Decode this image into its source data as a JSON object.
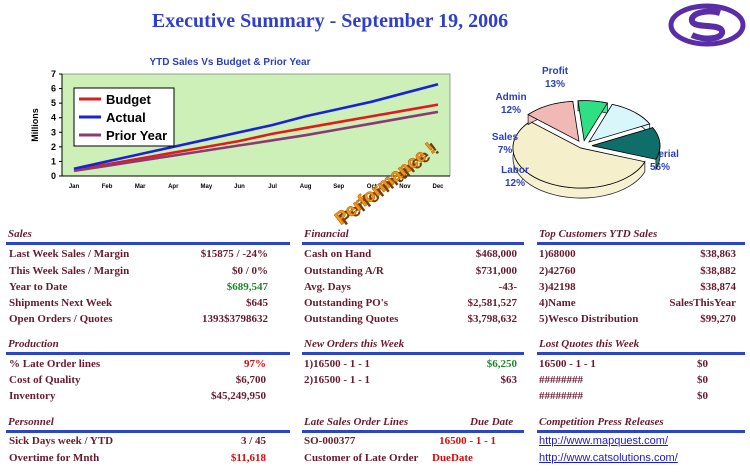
{
  "header": {
    "title": "Executive Summary - September 19, 2006"
  },
  "colors": {
    "title_blue": "#2f3fcc",
    "section_rule": "#2a45c8",
    "label_plum": "#6a1a2e",
    "value_green": "#1c8a2a",
    "value_red": "#d80d0d",
    "plot_bg": "#cdf0b8"
  },
  "chart_data": [
    {
      "type": "line",
      "title": "YTD Sales Vs Budget & Prior Year",
      "ylabel": "Millions",
      "xlabel": "",
      "ylim": [
        0,
        7
      ],
      "yticks": [
        0,
        1,
        2,
        3,
        4,
        5,
        6,
        7
      ],
      "categories": [
        "Jan",
        "Feb",
        "Mar",
        "Apr",
        "May",
        "Jun",
        "Jul",
        "Aug",
        "Sep",
        "Oct",
        "Nov",
        "Dec"
      ],
      "legend": "top-left",
      "grid": false,
      "series": [
        {
          "name": "Budget",
          "color": "#e31a1a",
          "values": [
            0.4,
            0.8,
            1.2,
            1.6,
            2.0,
            2.4,
            2.9,
            3.3,
            3.7,
            4.1,
            4.5,
            4.9
          ]
        },
        {
          "name": "Actual",
          "color": "#1a22d6",
          "values": [
            0.5,
            1.0,
            1.5,
            2.0,
            2.5,
            3.0,
            3.5,
            4.1,
            4.6,
            5.1,
            5.7,
            6.3
          ]
        },
        {
          "name": "Prior Year",
          "color": "#8c3a74",
          "values": [
            0.35,
            0.7,
            1.05,
            1.4,
            1.75,
            2.1,
            2.45,
            2.8,
            3.2,
            3.6,
            4.0,
            4.4
          ]
        }
      ]
    },
    {
      "type": "pie",
      "slices": [
        {
          "label": "Material",
          "pct_label": "56%",
          "value": 56,
          "color": "#f6efcc"
        },
        {
          "label": "Labor",
          "pct_label": "12%",
          "value": 12,
          "color": "#f1b9b6"
        },
        {
          "label": "Sales",
          "pct_label": "7%",
          "value": 7,
          "color": "#2ee083"
        },
        {
          "label": "Admin",
          "pct_label": "12%",
          "value": 12,
          "color": "#d9f7fb"
        },
        {
          "label": "Profit",
          "pct_label": "13%",
          "value": 13,
          "color": "#0f6e6a"
        }
      ]
    }
  ],
  "performance_badge": "Performance !",
  "sales": {
    "title": "Sales",
    "rows": [
      {
        "label": "Last Week Sales / Margin",
        "value": "$15875 / -24%"
      },
      {
        "label": "This Week Sales / Margin",
        "value": "$0 / 0%"
      },
      {
        "label": "Year to Date",
        "value": "$689,547"
      },
      {
        "label": "Shipments Next Week",
        "value": "$645"
      },
      {
        "label": "Open Orders / Quotes",
        "value": "1393$3798632"
      }
    ]
  },
  "financial": {
    "title": "Financial",
    "rows": [
      {
        "label": "Cash on Hand",
        "value": "$468,000"
      },
      {
        "label": "Outstanding A/R",
        "value": "$731,000"
      },
      {
        "label": "Avg. Days",
        "value": "-43-"
      },
      {
        "label": "Outstanding PO's",
        "value": "$2,581,527"
      },
      {
        "label": "Outstanding Quotes",
        "value": "$3,798,632"
      }
    ]
  },
  "customers": {
    "title": "Top Customers YTD Sales",
    "rows": [
      {
        "label": "1)68000",
        "value": "$38,863"
      },
      {
        "label": "2)42760",
        "value": "$38,882"
      },
      {
        "label": "3)42198",
        "value": "$38,874"
      },
      {
        "label": "4)Name",
        "value": "SalesThisYear"
      },
      {
        "label": "5)Wesco Distribution",
        "value": "$99,270"
      }
    ]
  },
  "production": {
    "title": "Production",
    "rows": [
      {
        "label": "% Late Order lines",
        "value": "97%"
      },
      {
        "label": "Cost of Quality",
        "value": "$6,700"
      },
      {
        "label": "Inventory",
        "value": "$45,249,950"
      }
    ]
  },
  "new_orders": {
    "title": "New Orders this Week",
    "rows": [
      {
        "label": "1)16500 - 1 - 1",
        "value": "$6,250"
      },
      {
        "label": "2)16500 - 1 - 1",
        "value": "$63"
      }
    ]
  },
  "lost_quotes": {
    "title": "Lost Quotes this Week",
    "rows": [
      {
        "label": "16500 - 1 - 1",
        "value": "$0"
      },
      {
        "label": "########",
        "value": "$0"
      },
      {
        "label": "########",
        "value": "$0"
      }
    ]
  },
  "personnel": {
    "title": "Personnel",
    "rows": [
      {
        "label": "Sick Days week / YTD",
        "value": "3 / 45"
      },
      {
        "label": "Overtime for Mnth",
        "value": "$11,618"
      }
    ]
  },
  "late_sales": {
    "title": "Late Sales Order Lines",
    "due_header": "Due Date",
    "order": "SO-000377",
    "order_ref": "16500 - 1 - 1",
    "customer_label": "Customer of Late Order",
    "due_label": "DueDate"
  },
  "press": {
    "title": "Competition Press Releases",
    "links": [
      "http://www.mapquest.com/",
      "http://www.catsolutions.com/"
    ]
  }
}
